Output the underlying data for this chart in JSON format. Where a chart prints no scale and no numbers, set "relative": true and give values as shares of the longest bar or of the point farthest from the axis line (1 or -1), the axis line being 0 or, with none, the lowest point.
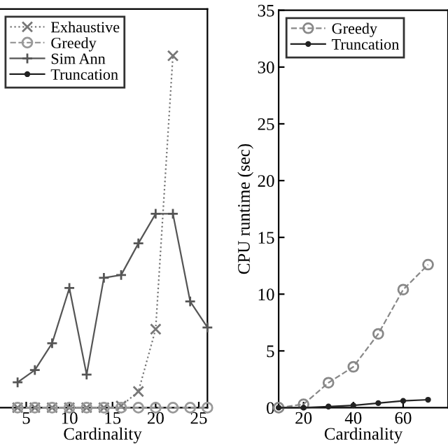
{
  "chart_data": [
    {
      "type": "line",
      "relative": true,
      "xlabel": "Cardinality",
      "x": [
        4,
        6,
        8,
        10,
        12,
        14,
        16,
        18,
        20,
        22,
        24,
        26
      ],
      "xlim": [
        1.7,
        26
      ],
      "xticks": [
        5,
        10,
        15,
        20,
        25
      ],
      "tick_labels": "x",
      "legend": "top left",
      "grid": false,
      "series": [
        {
          "name": "Exhaustive",
          "color": "#777777",
          "marker": "cross",
          "line_style": "dotted",
          "values": [
            0,
            0,
            0,
            0,
            0,
            0,
            0.005,
            0.046,
            0.223,
            1,
            null,
            null
          ]
        },
        {
          "name": "Greedy",
          "color": "#999999",
          "marker": "circle",
          "line_style": "dashed",
          "values": [
            0,
            0,
            0,
            0,
            0,
            0,
            0,
            0,
            0,
            0,
            0,
            0
          ]
        },
        {
          "name": "Sim Ann",
          "color": "#555555",
          "marker": "plus",
          "line_style": "solid",
          "values": [
            0.072,
            0.107,
            0.183,
            0.34,
            0.094,
            0.369,
            0.377,
            0.467,
            0.551,
            0.551,
            0.302,
            0.228
          ]
        },
        {
          "name": "Truncation",
          "color": "#222222",
          "marker": "point",
          "line_style": "solid",
          "values": [
            null,
            null,
            null,
            null,
            null,
            null,
            null,
            null,
            null,
            null,
            null,
            null
          ]
        }
      ]
    },
    {
      "type": "line",
      "xlabel": "Cardinality",
      "ylabel": "CPU runtime (sec)",
      "x": [
        10,
        20,
        30,
        40,
        50,
        60,
        70
      ],
      "xlim": [
        10,
        78
      ],
      "xticks": [
        20,
        40,
        60
      ],
      "ylim": [
        0,
        35
      ],
      "yticks": [
        0,
        5,
        10,
        15,
        20,
        25,
        30,
        35
      ],
      "legend": "top left",
      "grid": false,
      "series": [
        {
          "name": "Greedy",
          "color": "#888888",
          "marker": "circle",
          "line_style": "dashed",
          "values": [
            0,
            0.3,
            2.2,
            3.6,
            6.5,
            10.4,
            12.6
          ]
        },
        {
          "name": "Truncation",
          "color": "#222222",
          "marker": "point",
          "line_style": "solid",
          "values": [
            0,
            0,
            0.1,
            0.2,
            0.4,
            0.6,
            0.7
          ]
        }
      ]
    }
  ]
}
